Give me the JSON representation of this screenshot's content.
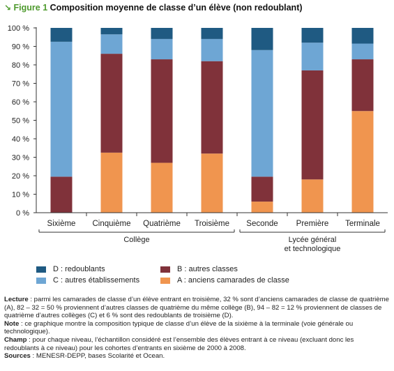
{
  "header": {
    "arrow": "↘",
    "figure_label": "Figure 1",
    "title": "Composition moyenne de classe d’un élève (non redoublant)"
  },
  "chart_data": {
    "type": "bar",
    "stacked": true,
    "title": "Composition moyenne de classe d’un élève (non redoublant)",
    "categories": [
      "Sixième",
      "Cinquième",
      "Quatrième",
      "Troisième",
      "Seconde",
      "Première",
      "Terminale"
    ],
    "groups": [
      {
        "label": "Collège",
        "categories": [
          "Sixième",
          "Cinquième",
          "Quatrième",
          "Troisième"
        ]
      },
      {
        "label_lines": [
          "Lycée général",
          "et technologique"
        ],
        "categories": [
          "Seconde",
          "Première",
          "Terminale"
        ]
      }
    ],
    "y_ticks": [
      "0 %",
      "10 %",
      "20 %",
      "30 %",
      "40 %",
      "50 %",
      "60 %",
      "70 %",
      "80 %",
      "90 %",
      "100 %"
    ],
    "ylim": [
      0,
      100
    ],
    "series": [
      {
        "name": "A : anciens camarades de classe",
        "color": "#f0954f",
        "values": [
          0,
          32.5,
          27,
          32,
          6,
          18,
          55
        ]
      },
      {
        "name": "B : autres classes",
        "color": "#80323a",
        "values": [
          19.5,
          53.5,
          56,
          50,
          13.5,
          59,
          28
        ]
      },
      {
        "name": "C : autres établissements",
        "color": "#6ea6d4",
        "values": [
          73,
          10.5,
          11,
          12,
          68.5,
          15,
          8.5
        ]
      },
      {
        "name": "D : redoublants",
        "color": "#1f5a82",
        "values": [
          7.5,
          3.5,
          6,
          6,
          12,
          8,
          8.5
        ]
      }
    ],
    "legend_position": "bottom",
    "grid": false
  },
  "legend": {
    "d": "D : redoublants",
    "b": "B : autres classes",
    "c": "C : autres établissements",
    "a": "A : anciens camarades de classe"
  },
  "notes": {
    "lecture_label": "Lecture",
    "lecture_text": " : parmi les camarades de classe d’un élève entrant en troisième, 32 % sont d’anciens camarades de classe de quatrième (A), 82 – 32 = 50 % proviennent d’autres classes de quatrième du même collège (B), 94 – 82 = 12 % proviennent de classes de quatrième d’autres collèges (C) et 6 % sont des redoublants de troisième (D).",
    "note_label": "Note",
    "note_text": " : ce graphique montre la composition typique de classe d’un élève de la sixième à la terminale (voie générale ou technologique).",
    "champ_label": "Champ",
    "champ_text": " : pour chaque niveau, l’échantillon considéré est l’ensemble des élèves entrant à ce niveau (excluant donc les redoublants à ce niveau) pour les cohortes d’entrants en sixième de 2000 à 2008.",
    "sources_label": "Sources",
    "sources_text": " : MENESR-DEPP, bases Scolarité et Ocean."
  }
}
